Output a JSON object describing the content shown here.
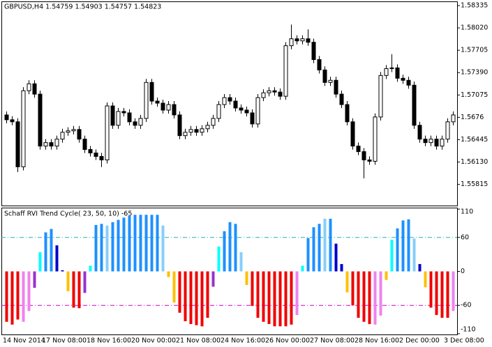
{
  "chart_data": [
    {
      "type": "candlestick",
      "title": "GBPUSD,H4  1.54759 1.54903 1.54757 1.54823",
      "open": [
        1.56794,
        1.56726,
        1.56697,
        1.56063,
        1.57135,
        1.57233,
        1.57087,
        1.56355,
        1.56404,
        1.56355,
        1.56453,
        1.5655,
        1.5657,
        1.56589,
        1.56453,
        1.56307,
        1.56258,
        1.56209,
        1.5616,
        1.56921,
        1.56648,
        1.56843,
        1.56823,
        1.56697,
        1.56648,
        1.56745,
        1.57252,
        1.56989,
        1.5696,
        1.56862,
        1.5694,
        1.56794,
        1.56502,
        1.5655,
        1.56589,
        1.5655,
        1.56599,
        1.56648,
        1.56745,
        1.5694,
        1.57038,
        1.56989,
        1.56892,
        1.56862,
        1.56823,
        1.56667,
        1.57038,
        1.57106,
        1.57135,
        1.57116,
        1.57057,
        1.57769,
        1.57867,
        1.57837,
        1.57867,
        1.57818,
        1.57574,
        1.57428,
        1.57252,
        1.57282,
        1.57087,
        1.5694,
        1.56697,
        1.56355,
        1.56277,
        1.5616,
        1.56141,
        1.56765,
        1.5735,
        1.57447,
        1.57457,
        1.57311,
        1.57282,
        1.57213,
        1.56648,
        1.56453,
        1.56404,
        1.56453,
        1.56355,
        1.56453,
        1.56697
      ],
      "high": [
        1.56844,
        1.56776,
        1.56747,
        1.57185,
        1.57283,
        1.57283,
        1.57137,
        1.56454,
        1.56454,
        1.56503,
        1.566,
        1.5662,
        1.56639,
        1.56639,
        1.56503,
        1.56357,
        1.56308,
        1.56259,
        1.56971,
        1.56971,
        1.56893,
        1.56893,
        1.56873,
        1.56747,
        1.56795,
        1.57302,
        1.57302,
        1.57039,
        1.5701,
        1.5699,
        1.5699,
        1.56844,
        1.566,
        1.56639,
        1.56639,
        1.56649,
        1.56698,
        1.56795,
        1.5699,
        1.57088,
        1.57088,
        1.57039,
        1.56942,
        1.56912,
        1.56873,
        1.57088,
        1.57156,
        1.57185,
        1.57185,
        1.57166,
        1.57819,
        1.58067,
        1.57917,
        1.57917,
        1.58,
        1.57868,
        1.57624,
        1.57478,
        1.57332,
        1.57332,
        1.57137,
        1.5699,
        1.56747,
        1.56405,
        1.56327,
        1.5621,
        1.56815,
        1.574,
        1.57497,
        1.5765,
        1.57507,
        1.57361,
        1.57332,
        1.57263,
        1.56698,
        1.56503,
        1.56503,
        1.56503,
        1.56503,
        1.56747,
        1.56844
      ],
      "low": [
        1.56676,
        1.56647,
        1.5599,
        1.56013,
        1.57085,
        1.57037,
        1.56305,
        1.56305,
        1.56305,
        1.56305,
        1.56403,
        1.565,
        1.5652,
        1.56403,
        1.56257,
        1.56208,
        1.56159,
        1.5606,
        1.5611,
        1.56598,
        1.56598,
        1.56773,
        1.56647,
        1.56598,
        1.56598,
        1.56695,
        1.56939,
        1.5691,
        1.56812,
        1.56812,
        1.56744,
        1.56452,
        1.56452,
        1.565,
        1.565,
        1.565,
        1.56549,
        1.56598,
        1.56695,
        1.5689,
        1.56939,
        1.56842,
        1.56812,
        1.56773,
        1.56617,
        1.56617,
        1.56988,
        1.57056,
        1.57066,
        1.57007,
        1.57007,
        1.57719,
        1.57787,
        1.57787,
        1.57768,
        1.57524,
        1.57378,
        1.57202,
        1.57202,
        1.57037,
        1.5689,
        1.56647,
        1.56305,
        1.56227,
        1.559,
        1.56091,
        1.56091,
        1.56715,
        1.573,
        1.57397,
        1.57261,
        1.57232,
        1.57163,
        1.56598,
        1.56403,
        1.56354,
        1.56354,
        1.56305,
        1.56305,
        1.56403,
        1.56647
      ],
      "close": [
        1.56726,
        1.56697,
        1.56063,
        1.57135,
        1.57233,
        1.57087,
        1.56355,
        1.56404,
        1.56355,
        1.56453,
        1.5655,
        1.5657,
        1.56589,
        1.56453,
        1.56307,
        1.56258,
        1.56209,
        1.5616,
        1.56921,
        1.56648,
        1.56843,
        1.56823,
        1.56697,
        1.56648,
        1.56745,
        1.57252,
        1.56989,
        1.5696,
        1.56862,
        1.5694,
        1.56794,
        1.56502,
        1.5655,
        1.56589,
        1.5655,
        1.56599,
        1.56648,
        1.56745,
        1.5694,
        1.57038,
        1.56989,
        1.56892,
        1.56862,
        1.56823,
        1.56667,
        1.57038,
        1.57106,
        1.57135,
        1.57116,
        1.57057,
        1.57769,
        1.57867,
        1.57837,
        1.57867,
        1.57818,
        1.57574,
        1.57428,
        1.57252,
        1.57282,
        1.57087,
        1.5694,
        1.56697,
        1.56355,
        1.56277,
        1.5616,
        1.56141,
        1.56765,
        1.5735,
        1.57447,
        1.57457,
        1.57311,
        1.57282,
        1.57213,
        1.56648,
        1.56453,
        1.56404,
        1.56453,
        1.56355,
        1.56453,
        1.56697,
        1.56794
      ],
      "up_color": "#ffffff",
      "down_color": "#000000",
      "wick_color": "#000000",
      "ylim": [
        1.55517,
        1.58384
      ],
      "yticks": [
        1.58335,
        {
          "value": 1.5802,
          "label": "1.58020"
        },
        1.57705,
        {
          "value": 1.5739,
          "label": "1.57390"
        },
        1.57075,
        1.5676,
        1.56445,
        {
          "value": 1.5613,
          "label": "1.56130"
        },
        1.55815
      ]
    },
    {
      "type": "bar",
      "title": "Schaff RVI Trend Cycle( 23, 50, 10) -65",
      "categories": [
        "14 Nov 2014",
        null,
        null,
        null,
        null,
        null,
        null,
        "17 Nov 08:00",
        null,
        null,
        null,
        null,
        null,
        null,
        null,
        "18 Nov 16:00",
        null,
        null,
        null,
        null,
        null,
        null,
        null,
        "20 Nov 00:00",
        null,
        null,
        null,
        null,
        null,
        null,
        null,
        "21 Nov 08:00",
        null,
        null,
        null,
        null,
        null,
        null,
        null,
        "24 Nov 16:00",
        null,
        null,
        null,
        null,
        null,
        null,
        null,
        "26 Nov 00:00",
        null,
        null,
        null,
        null,
        null,
        null,
        null,
        "27 Nov 08:00",
        null,
        null,
        null,
        null,
        null,
        null,
        null,
        "28 Nov 16:00",
        null,
        null,
        null,
        null,
        null,
        null,
        null,
        "2 Dec 00:00",
        null,
        null,
        null,
        null,
        null,
        null,
        null,
        "3 Dec 08:00",
        null
      ],
      "values": [
        -89,
        -94,
        -85,
        -89,
        -70,
        -29,
        34,
        69,
        75,
        46,
        2,
        -35,
        -64,
        -65,
        -38,
        10,
        82,
        84,
        81,
        87,
        91,
        95,
        98,
        100,
        100,
        100,
        100,
        100,
        81,
        -10,
        -55,
        -73,
        -88,
        -93,
        -95,
        -97,
        -82,
        -27,
        44,
        71,
        87,
        84,
        34,
        -24,
        -61,
        -82,
        -89,
        -93,
        -97,
        -97,
        -97,
        -94,
        -77,
        10,
        59,
        78,
        84,
        93,
        93,
        49,
        13,
        -37,
        -60,
        -82,
        -89,
        -93,
        -94,
        -78,
        -15,
        56,
        76,
        90,
        92,
        58,
        13,
        -28,
        -64,
        -77,
        -82,
        -82,
        -70
      ],
      "colors": [
        "#f00000",
        "#f00000",
        "#f00000",
        "#ee82ee",
        "#ee82ee",
        "#9932cc",
        "#00ffff",
        "#1e90ff",
        "#1e90ff",
        "#0000cd",
        "#0000cd",
        "#ffc000",
        "#f00000",
        "#f00000",
        "#9932cc",
        "#00ffff",
        "#1e90ff",
        "#1e90ff",
        "#87cefa",
        "#1e90ff",
        "#1e90ff",
        "#1e90ff",
        "#1e90ff",
        "#1e90ff",
        "#1e90ff",
        "#1e90ff",
        "#1e90ff",
        "#1e90ff",
        "#87cefa",
        "#ffc000",
        "#ffc000",
        "#f00000",
        "#f00000",
        "#f00000",
        "#f00000",
        "#f00000",
        "#f00000",
        "#9932cc",
        "#00ffff",
        "#1e90ff",
        "#1e90ff",
        "#1e90ff",
        "#87cefa",
        "#ffc000",
        "#f00000",
        "#f00000",
        "#f00000",
        "#f00000",
        "#f00000",
        "#f00000",
        "#f00000",
        "#f00000",
        "#ee82ee",
        "#00ffff",
        "#1e90ff",
        "#1e90ff",
        "#1e90ff",
        "#87cefa",
        "#1e90ff",
        "#0000cd",
        "#0000cd",
        "#ffc000",
        "#f00000",
        "#f00000",
        "#f00000",
        "#f00000",
        "#ee82ee",
        "#ee82ee",
        "#ffc000",
        "#00ffff",
        "#1e90ff",
        "#1e90ff",
        "#1e90ff",
        "#87cefa",
        "#0000cd",
        "#ffc000",
        "#f00000",
        "#f00000",
        "#f00000",
        "#f00000",
        "#ee82ee"
      ],
      "levels": [
        60,
        -60
      ],
      "level_colors": [
        "#20b2aa",
        "#cc00cc"
      ],
      "ylim": [
        -111.4,
        111.4
      ],
      "yticks": [
        110,
        60,
        0,
        -60,
        -110
      ]
    }
  ]
}
